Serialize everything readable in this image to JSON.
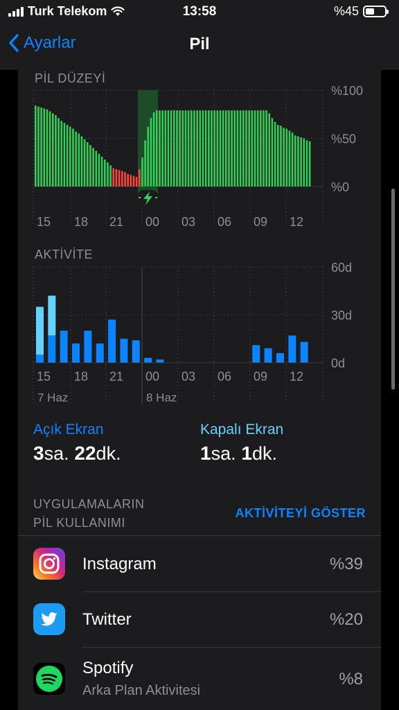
{
  "status_bar": {
    "carrier": "Turk Telekom",
    "time": "13:58",
    "battery_percent_label": "%45",
    "battery_level": 0.45,
    "icons": [
      "signal-icon",
      "wifi-icon",
      "battery-icon"
    ]
  },
  "nav": {
    "back_label": "Ayarlar",
    "title": "Pil"
  },
  "battery_chart": {
    "title": "PİL DÜZEYİ",
    "y_ticks": [
      "%100",
      "%50",
      "%0"
    ],
    "x_ticks": [
      "15",
      "18",
      "21",
      "00",
      "03",
      "06",
      "09",
      "12"
    ],
    "chart_data": {
      "type": "bar",
      "ylabel": "",
      "ylim": [
        0,
        100
      ],
      "charging_marker_label": "charging",
      "colors": {
        "normal": "#30d158",
        "low": "#ff453a",
        "charging_band": "#1e5a2a"
      },
      "values": [
        84,
        83,
        82,
        81,
        80,
        78,
        76,
        74,
        71,
        68,
        66,
        64,
        62,
        60,
        57,
        55,
        52,
        49,
        46,
        43,
        40,
        37,
        34,
        31,
        28,
        25,
        22,
        19,
        18,
        17,
        16,
        15,
        13,
        12,
        11,
        10,
        18,
        30,
        48,
        62,
        71,
        77,
        79,
        79,
        79,
        79,
        79,
        79,
        79,
        79,
        79,
        79,
        79,
        79,
        79,
        79,
        79,
        79,
        79,
        79,
        79,
        79,
        79,
        79,
        79,
        79,
        79,
        79,
        79,
        79,
        79,
        79,
        79,
        79,
        79,
        79,
        79,
        79,
        79,
        79,
        79,
        76,
        71,
        67,
        64,
        63,
        61,
        60,
        58,
        56,
        53,
        52,
        51,
        50,
        48,
        47
      ]
    }
  },
  "activity_chart": {
    "title": "AKTİVİTE",
    "y_ticks": [
      "60d",
      "30d",
      "0d"
    ],
    "x_ticks": [
      "15",
      "18",
      "21",
      "00",
      "03",
      "06",
      "09",
      "12"
    ],
    "date_labels": [
      "7 Haz",
      "8 Haz"
    ],
    "chart_data": {
      "type": "bar",
      "ylim": [
        0,
        60
      ],
      "series": [
        {
          "values": [
            5,
            17,
            20,
            12,
            20,
            12,
            27,
            15,
            14,
            3,
            2,
            0,
            0,
            0,
            0,
            0,
            0,
            0,
            11,
            9,
            6,
            17,
            13
          ],
          "color": "#0a84ff"
        },
        {
          "values": [
            30,
            25,
            0,
            0,
            0,
            0,
            0,
            0,
            0,
            0,
            0,
            0,
            0,
            0,
            0,
            0,
            0,
            0,
            0,
            0,
            0,
            0,
            0
          ],
          "color": "#64d2ff"
        }
      ]
    }
  },
  "screen": {
    "on_title": "Açık Ekran",
    "on_hours": "3",
    "on_hours_unit": "sa.",
    "on_minutes": "22",
    "on_minutes_unit": "dk.",
    "off_title": "Kapalı Ekran",
    "off_hours": "1",
    "off_hours_unit": "sa.",
    "off_minutes": "1",
    "off_minutes_unit": "dk."
  },
  "apps_section": {
    "title_line1": "UYGULAMALARIN",
    "title_line2": "PİL KULLANIMI",
    "show_activity": "AKTİVİTEYİ GÖSTER",
    "apps": [
      {
        "name": "Instagram",
        "percent": "%39",
        "subtitle": ""
      },
      {
        "name": "Twitter",
        "percent": "%20",
        "subtitle": ""
      },
      {
        "name": "Spotify",
        "percent": "%8",
        "subtitle": "Arka Plan Aktivitesi"
      }
    ]
  }
}
